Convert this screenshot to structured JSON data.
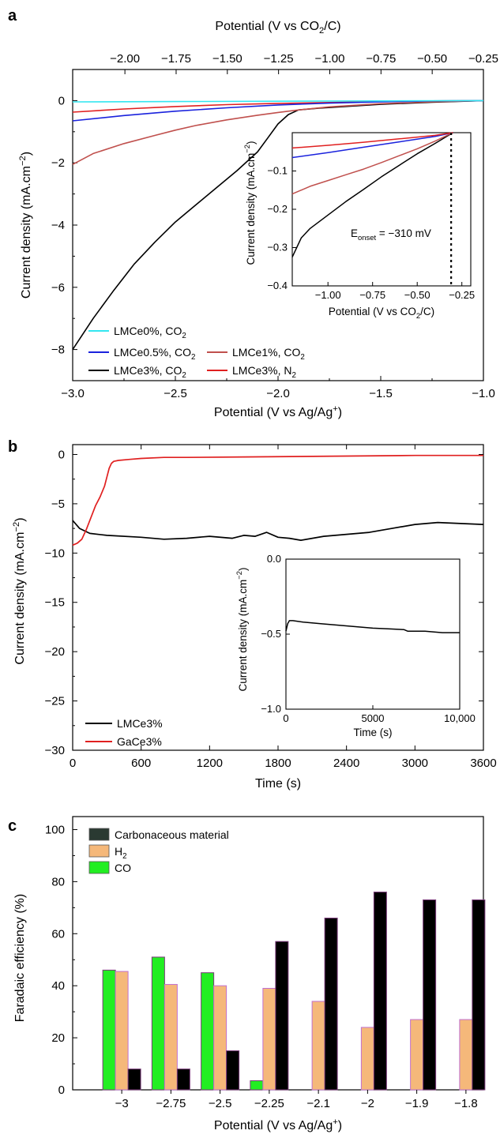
{
  "chart_data": [
    {
      "panel": "a",
      "type": "line",
      "xlabel": "Potential (V vs Ag/Ag⁺)",
      "ylabel": "Current density (mA.cm⁻²)",
      "x2label": "Potential (V vs CO₂/C)",
      "xlim": [
        -3.0,
        -1.0
      ],
      "ylim": [
        -9,
        1
      ],
      "x2lim": [
        -2.255,
        -0.25
      ],
      "xticks": [
        "−3.0",
        "−2.5",
        "−2.0",
        "−1.5",
        "−1.0"
      ],
      "yticks": [
        "−8",
        "−6",
        "−4",
        "−2",
        "0"
      ],
      "x2ticks": [
        "−2.00",
        "−1.75",
        "−1.50",
        "−1.25",
        "−1.00",
        "−0.75",
        "−0.50",
        "−0.25"
      ],
      "legend_placement": "bottom-left",
      "series": [
        {
          "name": "LMCe0%, CO₂",
          "color": "#33e6f0",
          "x": [
            -3.0,
            -2.5,
            -2.0,
            -1.5,
            -1.0
          ],
          "y": [
            -0.04,
            -0.03,
            -0.02,
            -0.01,
            0.0
          ]
        },
        {
          "name": "LMCe0.5%, CO₂",
          "color": "#1a22dd",
          "x": [
            -3.0,
            -2.75,
            -2.5,
            -2.25,
            -2.0,
            -1.75,
            -1.5,
            -1.25,
            -1.0
          ],
          "y": [
            -0.65,
            -0.48,
            -0.34,
            -0.23,
            -0.14,
            -0.08,
            -0.04,
            -0.01,
            0.0
          ]
        },
        {
          "name": "LMCe1%, CO₂",
          "color": "#c0504d",
          "x": [
            -3.0,
            -2.9,
            -2.75,
            -2.6,
            -2.5,
            -2.4,
            -2.25,
            -2.1,
            -2.0,
            -1.9,
            -1.75,
            -1.5,
            -1.25,
            -1.0
          ],
          "y": [
            -2.05,
            -1.7,
            -1.38,
            -1.12,
            -0.95,
            -0.8,
            -0.62,
            -0.47,
            -0.38,
            -0.3,
            -0.2,
            -0.1,
            -0.04,
            0.0
          ]
        },
        {
          "name": "LMCe3%, CO₂",
          "color": "#000000",
          "x": [
            -3.0,
            -2.9,
            -2.8,
            -2.7,
            -2.6,
            -2.5,
            -2.4,
            -2.3,
            -2.2,
            -2.1,
            -2.05,
            -2.0,
            -1.95,
            -1.9,
            -1.8,
            -1.7,
            -1.5,
            -1.25,
            -1.0
          ],
          "y": [
            -8.0,
            -7.0,
            -6.1,
            -5.25,
            -4.55,
            -3.9,
            -3.35,
            -2.8,
            -2.25,
            -1.65,
            -1.2,
            -0.75,
            -0.45,
            -0.3,
            -0.24,
            -0.2,
            -0.12,
            -0.05,
            0.0
          ]
        },
        {
          "name": "LMCe3%, N₂",
          "color": "#e02020",
          "x": [
            -3.0,
            -2.75,
            -2.5,
            -2.25,
            -2.0,
            -1.75,
            -1.5,
            -1.25,
            -1.0
          ],
          "y": [
            -0.37,
            -0.27,
            -0.19,
            -0.13,
            -0.09,
            -0.06,
            -0.03,
            -0.01,
            0.0
          ]
        }
      ],
      "inset": {
        "type": "line",
        "xlabel": "Potential (V vs CO₂/C)",
        "ylabel": "Current density (mA.cm⁻²)",
        "xlim": [
          -1.2,
          -0.2
        ],
        "ylim": [
          -0.4,
          0.0
        ],
        "xticks": [
          "−1.00",
          "−0.75",
          "−0.50",
          "−0.25"
        ],
        "yticks": [
          "−0.4",
          "−0.3",
          "−0.2",
          "−0.1"
        ],
        "annotation": "E",
        "annotation_sub": "onset",
        "annotation_value": " = −310 mV",
        "onset_line_x": -0.31,
        "series": [
          {
            "name": "LMCe3%, CO₂",
            "color": "#000000",
            "x": [
              -1.2,
              -1.15,
              -1.1,
              -1.0,
              -0.9,
              -0.8,
              -0.7,
              -0.6,
              -0.5,
              -0.4,
              -0.3
            ],
            "y": [
              -0.325,
              -0.275,
              -0.25,
              -0.215,
              -0.18,
              -0.148,
              -0.115,
              -0.085,
              -0.055,
              -0.028,
              0.0
            ]
          },
          {
            "name": "LMCe1%, CO₂",
            "color": "#c0504d",
            "x": [
              -1.2,
              -1.1,
              -1.0,
              -0.9,
              -0.8,
              -0.7,
              -0.6,
              -0.5,
              -0.4,
              -0.3
            ],
            "y": [
              -0.16,
              -0.14,
              -0.125,
              -0.11,
              -0.095,
              -0.078,
              -0.06,
              -0.042,
              -0.022,
              0.0
            ]
          },
          {
            "name": "LMCe0.5%, CO₂",
            "color": "#1a22dd",
            "x": [
              -1.2,
              -1.0,
              -0.8,
              -0.6,
              -0.4,
              -0.3
            ],
            "y": [
              -0.065,
              -0.052,
              -0.038,
              -0.024,
              -0.01,
              0.0
            ]
          },
          {
            "name": "LMCe3%, N₂",
            "color": "#e02020",
            "x": [
              -1.2,
              -1.0,
              -0.8,
              -0.6,
              -0.4,
              -0.3
            ],
            "y": [
              -0.04,
              -0.033,
              -0.025,
              -0.016,
              -0.007,
              0.0
            ]
          }
        ]
      }
    },
    {
      "panel": "b",
      "type": "line",
      "xlabel": "Time (s)",
      "ylabel": "Current density (mA.cm⁻²)",
      "xlim": [
        0,
        3600
      ],
      "ylim": [
        -30,
        1
      ],
      "xticks": [
        "0",
        "600",
        "1200",
        "1800",
        "2400",
        "3000",
        "3600"
      ],
      "yticks": [
        "−30",
        "−25",
        "−20",
        "−15",
        "−10",
        "−5",
        "0"
      ],
      "legend_placement": "bottom-left",
      "series": [
        {
          "name": "LMCe3%",
          "color": "#000000",
          "x": [
            0,
            60,
            150,
            300,
            600,
            800,
            1000,
            1200,
            1400,
            1500,
            1600,
            1700,
            1800,
            1900,
            2000,
            2200,
            2400,
            2600,
            2800,
            3000,
            3200,
            3400,
            3600
          ],
          "y": [
            -6.7,
            -7.5,
            -8.0,
            -8.2,
            -8.4,
            -8.6,
            -8.5,
            -8.3,
            -8.5,
            -8.2,
            -8.3,
            -7.9,
            -8.4,
            -8.5,
            -8.7,
            -8.3,
            -8.1,
            -7.9,
            -7.5,
            -7.1,
            -6.9,
            -7.0,
            -7.1
          ]
        },
        {
          "name": "GaCe3%",
          "color": "#e02020",
          "x": [
            0,
            40,
            80,
            120,
            160,
            200,
            240,
            280,
            300,
            320,
            340,
            360,
            400,
            500,
            600,
            800,
            1000,
            1500,
            2000,
            2500,
            3000,
            3600
          ],
          "y": [
            -9.2,
            -9.0,
            -8.6,
            -7.6,
            -6.4,
            -5.2,
            -4.3,
            -3.2,
            -2.3,
            -1.4,
            -0.9,
            -0.7,
            -0.6,
            -0.5,
            -0.4,
            -0.3,
            -0.3,
            -0.25,
            -0.2,
            -0.15,
            -0.1,
            -0.1
          ]
        }
      ],
      "inset": {
        "type": "line",
        "xlabel": "Time (s)",
        "ylabel": "Current density (mA.cm⁻²)",
        "xlim": [
          0,
          10000
        ],
        "ylim": [
          -1.0,
          0.0
        ],
        "xticks": [
          "0",
          "5000",
          "10,000"
        ],
        "yticks": [
          "−1.0",
          "−0.5",
          "0.0"
        ],
        "series": [
          {
            "name": "LMCe3%",
            "color": "#000000",
            "x": [
              0,
              100,
              200,
              400,
              1000,
              2000,
              3000,
              4000,
              5000,
              6000,
              6800,
              7000,
              8000,
              9000,
              10000
            ],
            "y": [
              -0.48,
              -0.43,
              -0.41,
              -0.41,
              -0.42,
              -0.43,
              -0.44,
              -0.45,
              -0.46,
              -0.465,
              -0.47,
              -0.48,
              -0.48,
              -0.49,
              -0.49
            ]
          }
        ]
      }
    },
    {
      "panel": "c",
      "type": "bar",
      "xlabel": "Potential (V vs Ag/Ag⁺)",
      "ylabel": "Faradaic efficiency (%)",
      "ylim": [
        0,
        105
      ],
      "yticks": [
        "0",
        "20",
        "40",
        "60",
        "80",
        "100"
      ],
      "categories": [
        "−3",
        "−2.75",
        "−2.5",
        "−2.25",
        "−2.1",
        "−2",
        "−1.9",
        "−1.8"
      ],
      "legend_placement": "top-left",
      "series": [
        {
          "name": "CO",
          "color": "#22ee22",
          "values": [
            46,
            51,
            45,
            3.5,
            0,
            0,
            0,
            0
          ]
        },
        {
          "name": "H₂",
          "color": "#f5b87a",
          "values": [
            45.5,
            40.5,
            40,
            39,
            34,
            24,
            27,
            27
          ]
        },
        {
          "name": "Carbonaceous material",
          "color": "#000000",
          "values": [
            8,
            8,
            15,
            57,
            66,
            76,
            73,
            73
          ]
        }
      ]
    }
  ]
}
